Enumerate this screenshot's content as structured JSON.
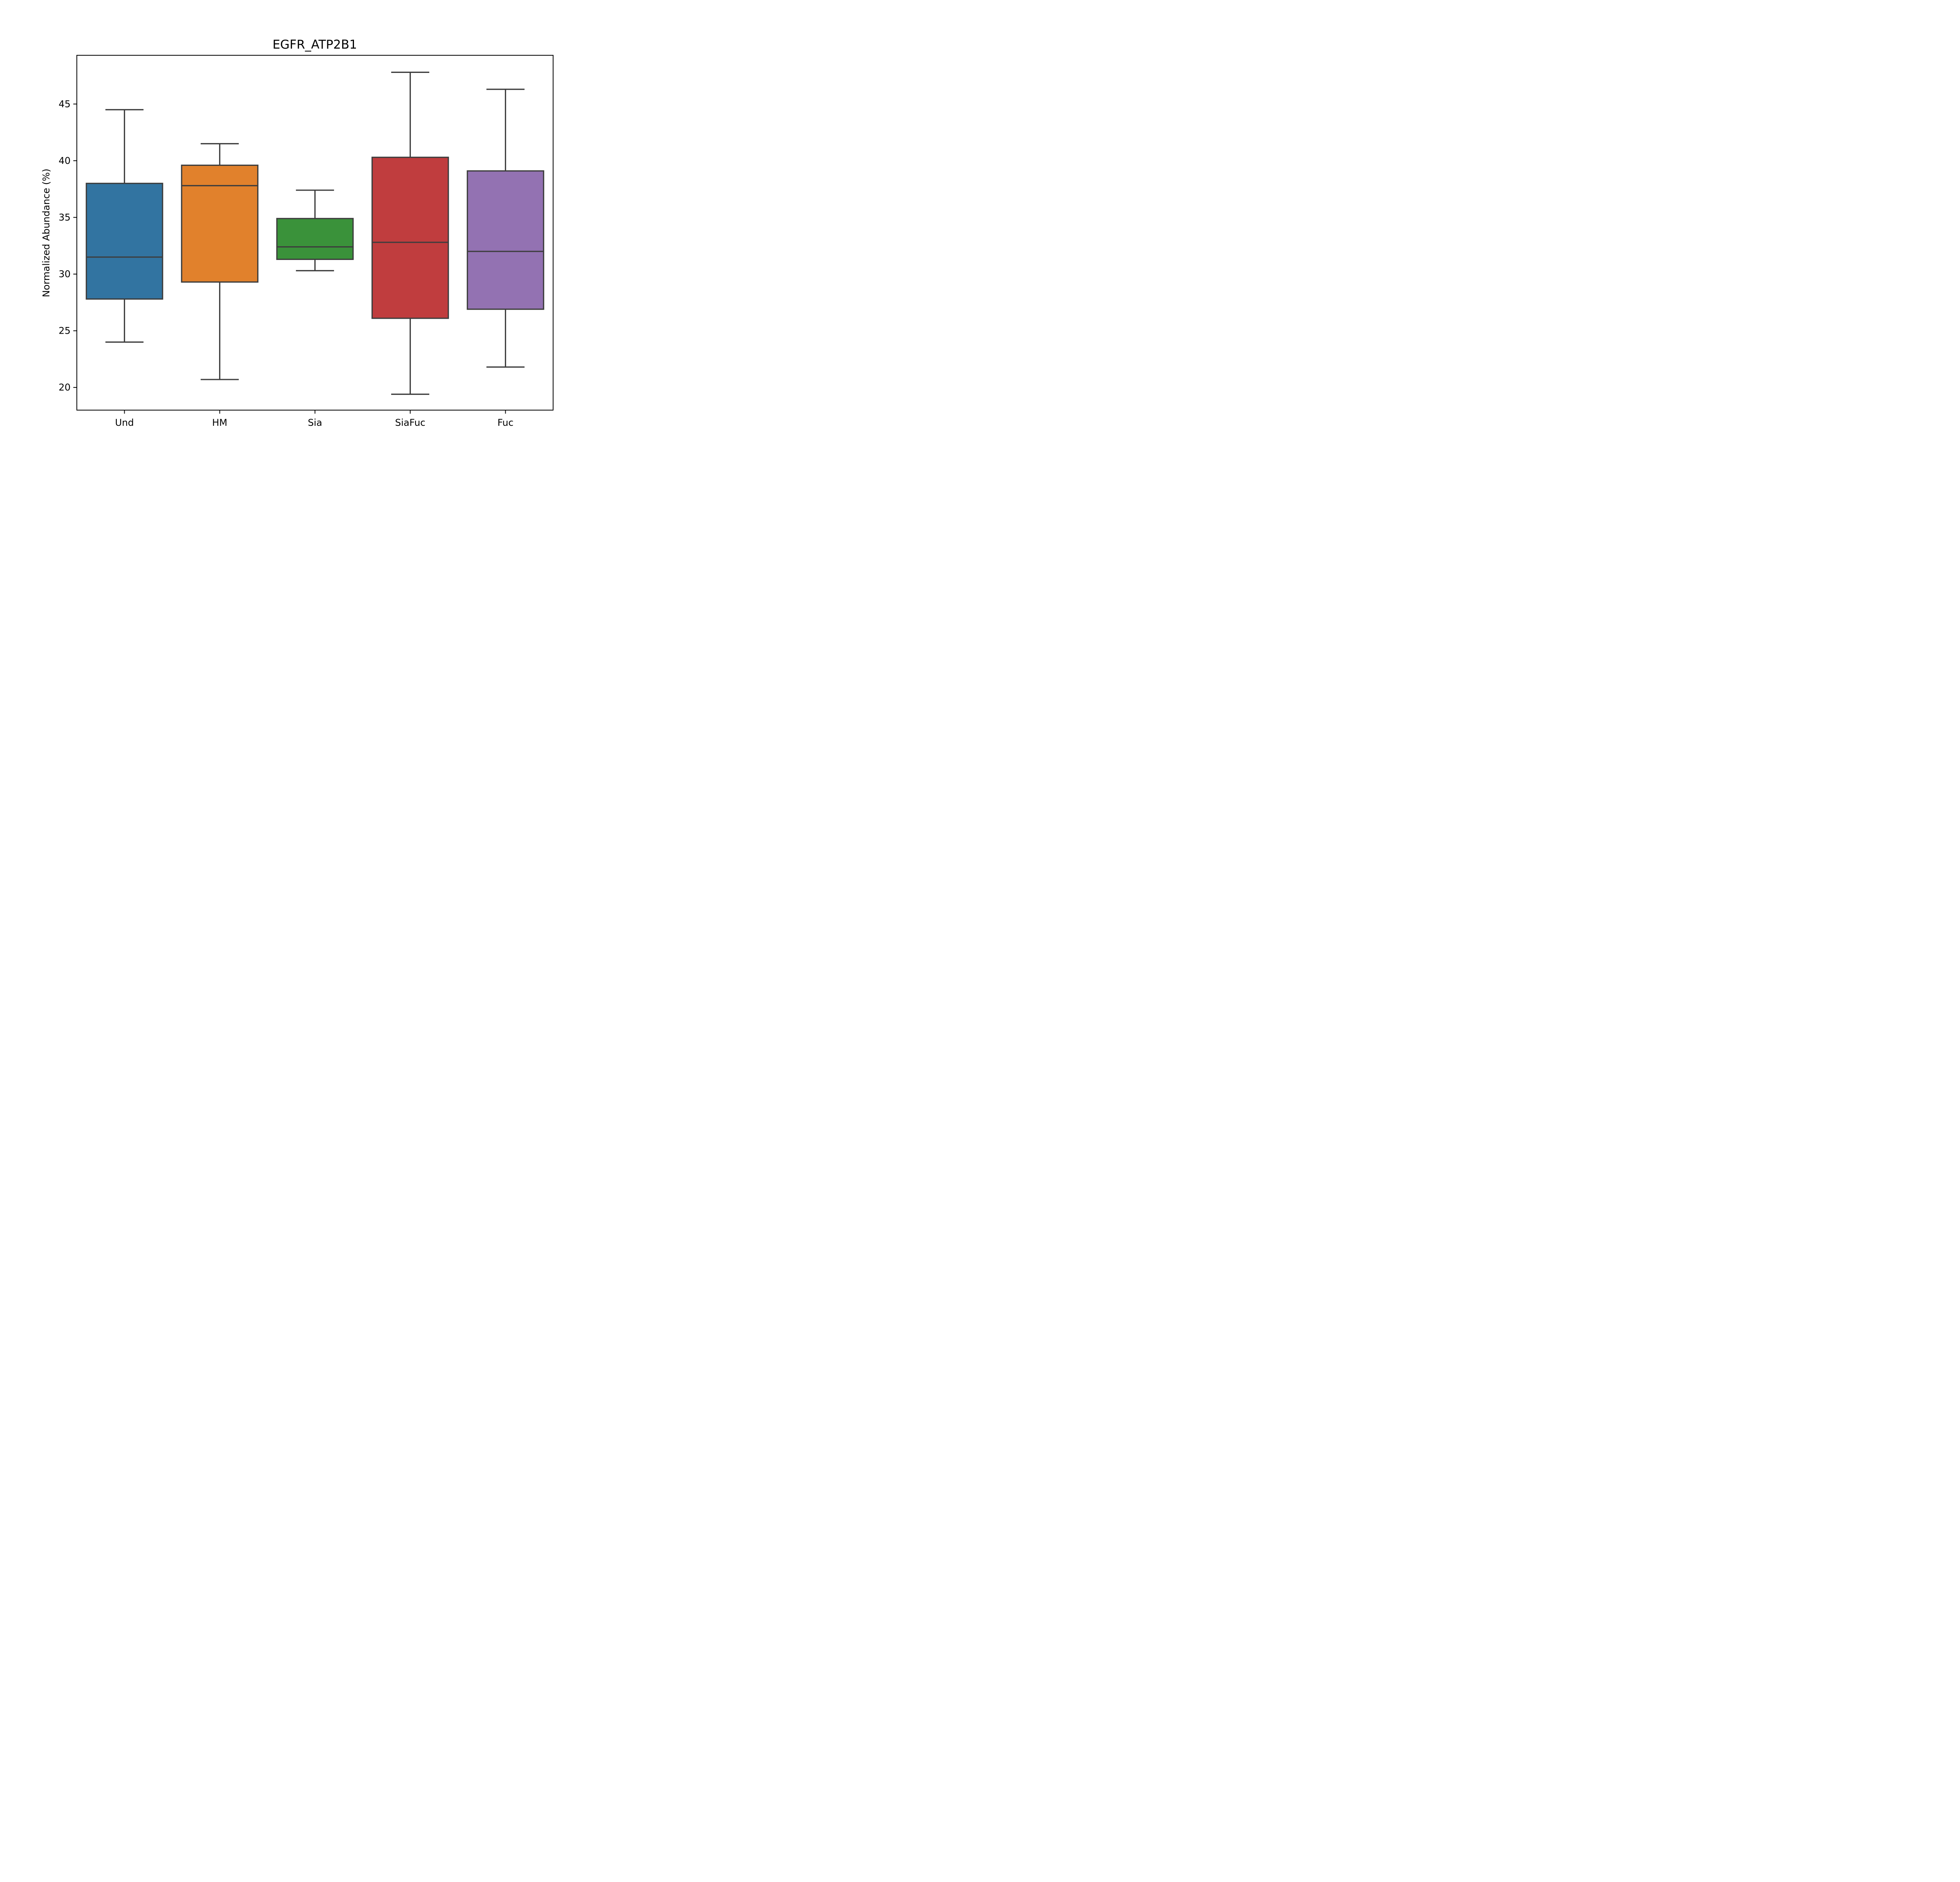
{
  "chart_data": {
    "type": "box",
    "title": "EGFR_ATP2B1",
    "xlabel": "",
    "ylabel": "Normalized Abundance (%)",
    "ylim": [
      18.0,
      49.3
    ],
    "yticks": [
      20,
      25,
      30,
      35,
      40,
      45
    ],
    "grid": false,
    "legend": "none",
    "categories": [
      "Und",
      "HM",
      "Sia",
      "SiaFuc",
      "Fuc"
    ],
    "boxes": [
      {
        "category": "Und",
        "whisker_low": 24.0,
        "q1": 27.8,
        "median": 31.5,
        "q3": 38.0,
        "whisker_high": 44.5,
        "color": "#3274a1"
      },
      {
        "category": "HM",
        "whisker_low": 20.7,
        "q1": 29.3,
        "median": 37.8,
        "q3": 39.6,
        "whisker_high": 41.5,
        "color": "#e1812c"
      },
      {
        "category": "Sia",
        "whisker_low": 30.3,
        "q1": 31.3,
        "median": 32.4,
        "q3": 34.9,
        "whisker_high": 37.4,
        "color": "#3a923a"
      },
      {
        "category": "SiaFuc",
        "whisker_low": 19.4,
        "q1": 26.1,
        "median": 32.8,
        "q3": 40.3,
        "whisker_high": 47.8,
        "color": "#c03d3e"
      },
      {
        "category": "Fuc",
        "whisker_low": 21.8,
        "q1": 26.9,
        "median": 32.0,
        "q3": 39.1,
        "whisker_high": 46.3,
        "color": "#9372b2"
      }
    ]
  },
  "colors": {
    "box_edge": "#3d3d3d",
    "axes": "#000000"
  }
}
